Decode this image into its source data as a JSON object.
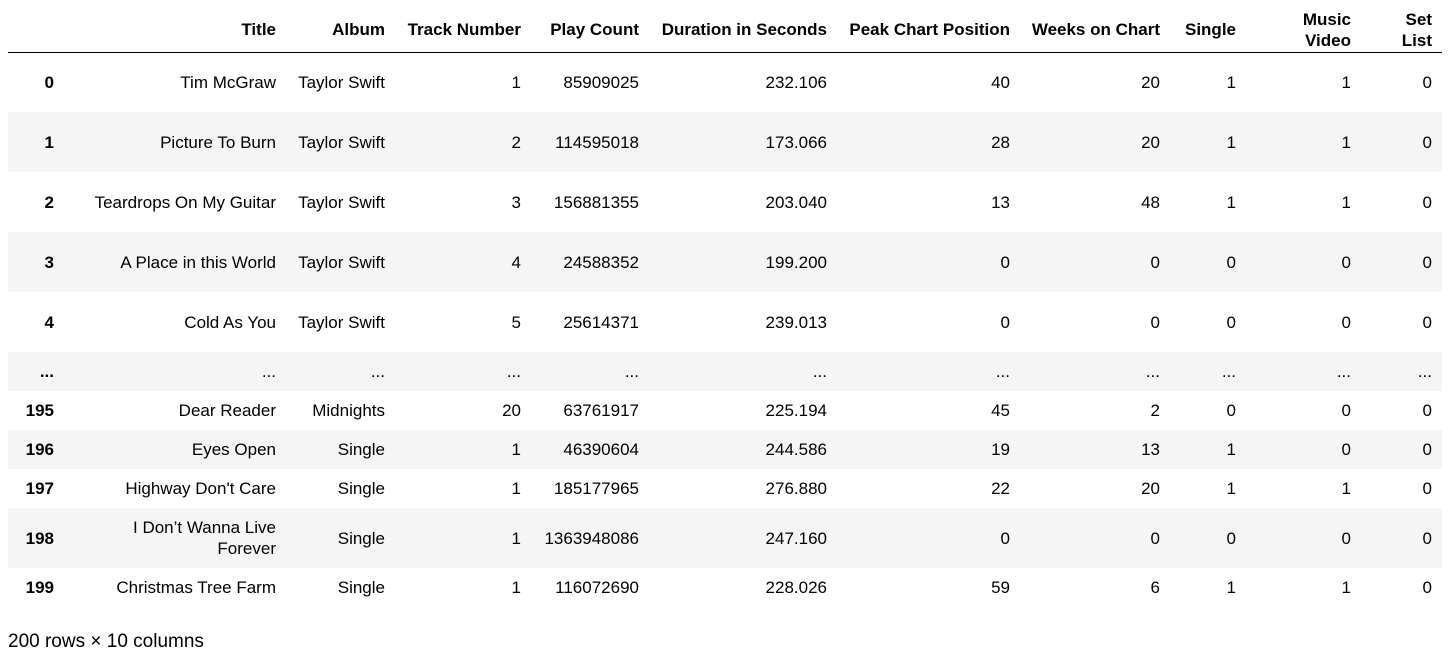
{
  "table": {
    "columns": [
      "",
      "Title",
      "Album",
      "Track Number",
      "Play Count",
      "Duration in Seconds",
      "Peak Chart Position",
      "Weeks on Chart",
      "Single",
      "Music Video",
      "Set List"
    ],
    "rows": [
      {
        "index": "0",
        "cells": [
          "Tim McGraw",
          "Taylor Swift",
          "1",
          "85909025",
          "232.106",
          "40",
          "20",
          "1",
          "1",
          "0"
        ],
        "tall": true
      },
      {
        "index": "1",
        "cells": [
          "Picture To Burn",
          "Taylor Swift",
          "2",
          "114595018",
          "173.066",
          "28",
          "20",
          "1",
          "1",
          "0"
        ],
        "tall": true
      },
      {
        "index": "2",
        "cells": [
          "Teardrops On My Guitar",
          "Taylor Swift",
          "3",
          "156881355",
          "203.040",
          "13",
          "48",
          "1",
          "1",
          "0"
        ],
        "tall": true
      },
      {
        "index": "3",
        "cells": [
          "A Place in this World",
          "Taylor Swift",
          "4",
          "24588352",
          "199.200",
          "0",
          "0",
          "0",
          "0",
          "0"
        ],
        "tall": true
      },
      {
        "index": "4",
        "cells": [
          "Cold As You",
          "Taylor Swift",
          "5",
          "25614371",
          "239.013",
          "0",
          "0",
          "0",
          "0",
          "0"
        ],
        "tall": true
      },
      {
        "index": "...",
        "cells": [
          "...",
          "...",
          "...",
          "...",
          "...",
          "...",
          "...",
          "...",
          "...",
          "..."
        ],
        "tall": false,
        "ellipsis": true
      },
      {
        "index": "195",
        "cells": [
          "Dear Reader",
          "Midnights",
          "20",
          "63761917",
          "225.194",
          "45",
          "2",
          "0",
          "0",
          "0"
        ],
        "tall": false
      },
      {
        "index": "196",
        "cells": [
          "Eyes Open",
          "Single",
          "1",
          "46390604",
          "244.586",
          "19",
          "13",
          "1",
          "0",
          "0"
        ],
        "tall": false
      },
      {
        "index": "197",
        "cells": [
          "Highway Don't Care",
          "Single",
          "1",
          "185177965",
          "276.880",
          "22",
          "20",
          "1",
          "1",
          "0"
        ],
        "tall": false
      },
      {
        "index": "198",
        "cells": [
          "I Don’t Wanna Live Forever",
          "Single",
          "1",
          "1363948086",
          "247.160",
          "0",
          "0",
          "0",
          "0",
          "0"
        ],
        "tall": true
      },
      {
        "index": "199",
        "cells": [
          "Christmas Tree Farm",
          "Single",
          "1",
          "116072690",
          "228.026",
          "59",
          "6",
          "1",
          "1",
          "0"
        ],
        "tall": false
      }
    ]
  },
  "footer": {
    "shape_text": "200 rows × 10 columns"
  }
}
